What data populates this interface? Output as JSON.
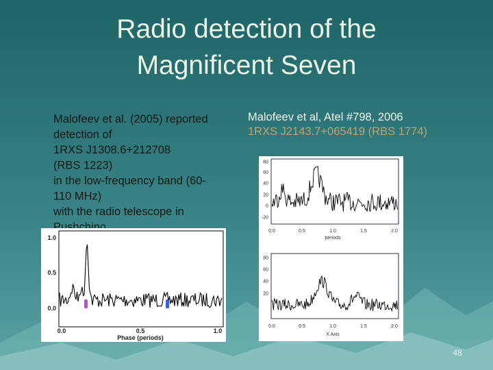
{
  "title": [
    "Radio detection of the",
    "Magnificent Seven"
  ],
  "left_text": [
    "Malofeev et al. (2005) reported",
    "detection of",
    "1RXS J1308.6+212708",
    "(RBS 1223)",
    "in the low-frequency band (60-",
    "110 MHz)",
    "with the radio telescope in",
    "Pushchino."
  ],
  "right_text": {
    "citation": "Malofeev et al, Atel #798, 2006",
    "source": "1RXS J2143.7+065419 (RBS  1774)"
  },
  "left_plot": {
    "yticks": [
      "1.0",
      "0.5",
      "0.0"
    ],
    "xticks": [
      "0.0",
      "0.5",
      "1.0"
    ],
    "xlabel": "Phase (periods)"
  },
  "right_plot": {
    "top": {
      "yticks": [
        "80",
        "60",
        "40",
        "20",
        "0",
        "-20"
      ],
      "xticks": [
        "0.0",
        "0.5",
        "1.0",
        "1.5",
        "2.0"
      ],
      "xlabel": "periods"
    },
    "bottom": {
      "yticks": [
        "80",
        "60",
        "40",
        "20"
      ],
      "xticks": [
        "0.0",
        "0.5",
        "1.0",
        "1.5",
        "2.0"
      ],
      "xlabel": "X Axis"
    }
  },
  "page_number": "48"
}
